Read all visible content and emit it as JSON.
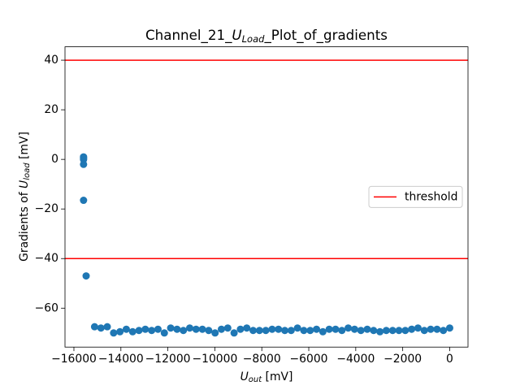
{
  "chart_data": {
    "type": "scatter",
    "title": {
      "prefix": "Channel_21_",
      "symbol": "U",
      "subscript": "Load",
      "suffix": "_Plot_of_gradients"
    },
    "x_label": {
      "symbol": "U",
      "subscript": "out",
      "suffix": " [mV]"
    },
    "y_label": {
      "prefix": "Gradients of ",
      "symbol": "U",
      "subscript": "load",
      "suffix": " [mV]"
    },
    "xlim": [
      -16380,
      780
    ],
    "ylim": [
      -75.7,
      45.4
    ],
    "xticks": [
      {
        "value": -16000,
        "label": "−16000"
      },
      {
        "value": -14000,
        "label": "−14000"
      },
      {
        "value": -12000,
        "label": "−12000"
      },
      {
        "value": -10000,
        "label": "−10000"
      },
      {
        "value": -8000,
        "label": "−8000"
      },
      {
        "value": -6000,
        "label": "−6000"
      },
      {
        "value": -4000,
        "label": "−4000"
      },
      {
        "value": -2000,
        "label": "−2000"
      },
      0
    ],
    "yticks": [
      {
        "value": -60,
        "label": "−60"
      },
      {
        "value": -40,
        "label": "−40"
      },
      {
        "value": -20,
        "label": "−20"
      },
      0,
      20,
      40
    ],
    "series": [
      {
        "color": "#1f77b4",
        "x": [
          -15590,
          -15590,
          -15590,
          -15590,
          -15590,
          -15480,
          -15120,
          -14850,
          -14580,
          -14310,
          -14040,
          -13770,
          -13500,
          -13230,
          -12960,
          -12690,
          -12420,
          -12150,
          -11880,
          -11610,
          -11340,
          -11070,
          -10800,
          -10530,
          -10260,
          -9990,
          -9720,
          -9450,
          -9180,
          -8910,
          -8640,
          -8370,
          -8100,
          -7830,
          -7560,
          -7290,
          -7020,
          -6750,
          -6480,
          -6210,
          -5940,
          -5670,
          -5400,
          -5130,
          -4860,
          -4590,
          -4320,
          -4050,
          -3780,
          -3510,
          -3240,
          -2970,
          -2700,
          -2430,
          -2160,
          -1890,
          -1620,
          -1350,
          -1080,
          -810,
          -540,
          -270,
          0
        ],
        "values": [
          1,
          0.5,
          0,
          -2,
          -16.5,
          -47,
          -67.5,
          -68,
          -67.5,
          -70,
          -69.5,
          -68.5,
          -69.5,
          -69,
          -68.5,
          -69,
          -68.5,
          -70,
          -68,
          -68.5,
          -69,
          -68,
          -68.5,
          -68.5,
          -69,
          -70,
          -68.5,
          -68,
          -70,
          -68.5,
          -68,
          -69,
          -69,
          -69,
          -68.5,
          -68.5,
          -69,
          -69,
          -68,
          -69,
          -69,
          -68.5,
          -69.5,
          -68.5,
          -68.5,
          -69,
          -68,
          -68.5,
          -69,
          -68.5,
          -69,
          -69.5,
          -69,
          -69,
          -69,
          -69,
          -68.5,
          -68,
          -69,
          -68.5,
          -68.5,
          -69,
          -68
        ]
      }
    ],
    "threshold": {
      "name": "threshold",
      "color": "#ff0000",
      "values": [
        40,
        -40
      ]
    },
    "legend": "center right"
  }
}
